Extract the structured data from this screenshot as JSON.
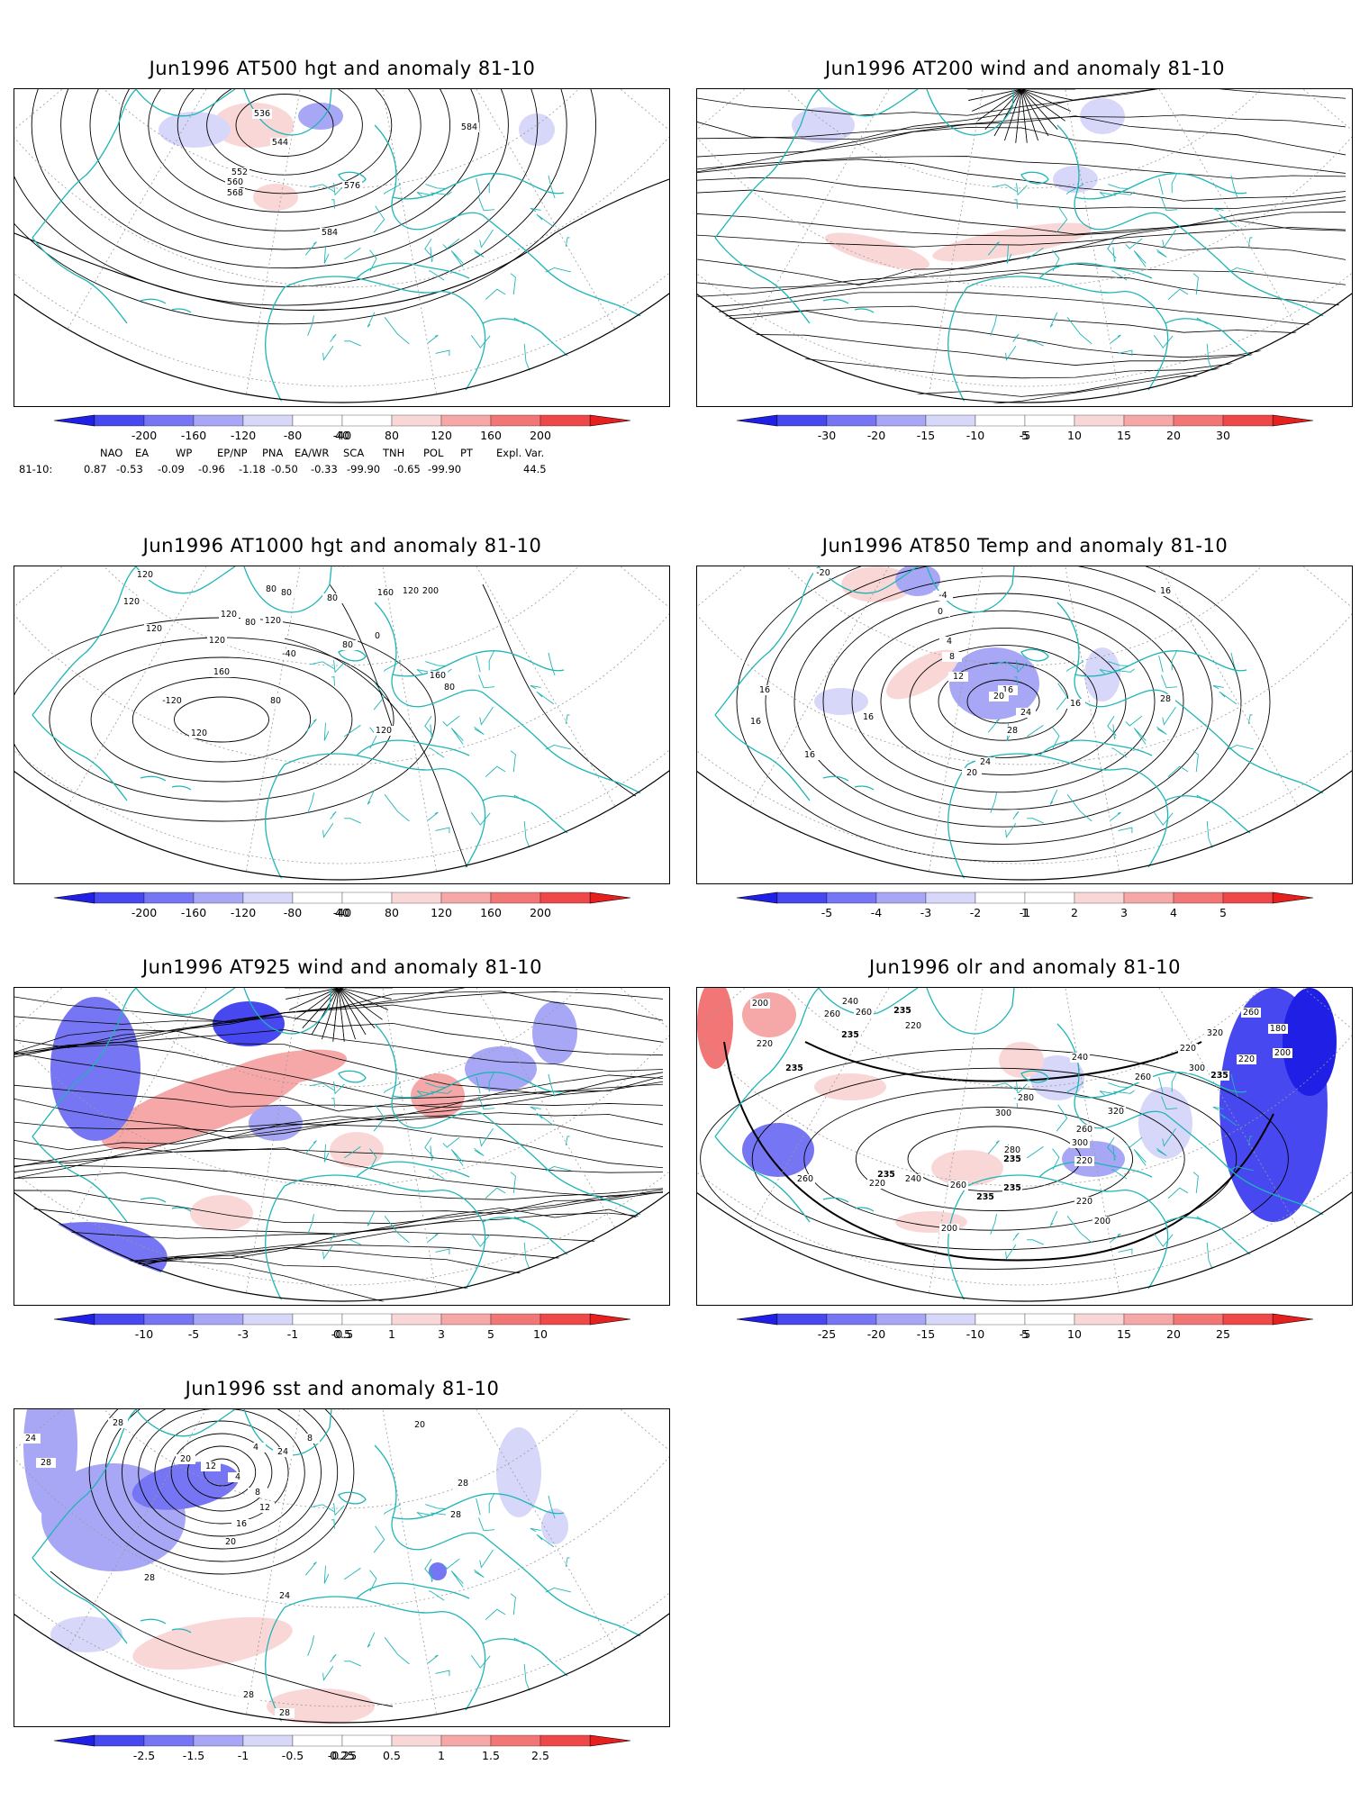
{
  "palette": {
    "neg": [
      "#1f1fe6",
      "#4848f0",
      "#7676f4",
      "#a7a7f6",
      "#d7d7fa"
    ],
    "pos": [
      "#fad7d7",
      "#f6a7a7",
      "#f27676",
      "#ee4848",
      "#e61f1f"
    ],
    "coast": "#1fb5b5",
    "contour": "#000000",
    "grid": "#9a9a9a"
  },
  "panels": [
    {
      "id": "z500",
      "title": "Jun1996 AT500 hgt and anomaly 81-10",
      "ticks": [
        "-200",
        "-160",
        "-120",
        "-80",
        "-40",
        "40",
        "80",
        "120",
        "160",
        "200"
      ],
      "contour_labels": [
        "536",
        "544",
        "552",
        "560",
        "568",
        "576",
        "584",
        "584"
      ]
    },
    {
      "id": "u200",
      "title": "Jun1996 AT200 wind and anomaly 81-10",
      "ticks": [
        "-30",
        "-20",
        "-15",
        "-10",
        "-5",
        "5",
        "10",
        "15",
        "20",
        "30"
      ],
      "contour_labels": []
    },
    {
      "id": "z1000",
      "title": "Jun1996 AT1000 hgt and anomaly 81-10",
      "ticks": [
        "-200",
        "-160",
        "-120",
        "-80",
        "-40",
        "40",
        "80",
        "120",
        "160",
        "200"
      ],
      "contour_labels": [
        "120",
        "120",
        "80",
        "120",
        "80",
        "80",
        "120",
        "80",
        "80",
        "0",
        "160",
        "120",
        "200",
        "120",
        "160",
        "120",
        "-40",
        "-120",
        "80",
        "80",
        "160",
        "120",
        "120"
      ]
    },
    {
      "id": "t850",
      "title": "Jun1996 AT850 Temp and anomaly 81-10",
      "ticks": [
        "-5",
        "-4",
        "-3",
        "-2",
        "-1",
        "1",
        "2",
        "3",
        "4",
        "5"
      ],
      "contour_labels": [
        "-20",
        "-4",
        "0",
        "4",
        "8",
        "12",
        "16",
        "20",
        "24",
        "28",
        "16",
        "16",
        "16",
        "16",
        "24",
        "20",
        "16",
        "28",
        "16"
      ]
    },
    {
      "id": "u925",
      "title": "Jun1996 AT925 wind and anomaly 81-10",
      "ticks": [
        "-10",
        "-5",
        "-3",
        "-1",
        "-0.5",
        "0.5",
        "1",
        "3",
        "5",
        "10"
      ],
      "contour_labels": []
    },
    {
      "id": "olr",
      "title": "Jun1996 olr and anomaly 81-10",
      "ticks": [
        "-25",
        "-20",
        "-15",
        "-10",
        "-5",
        "5",
        "10",
        "15",
        "20",
        "25"
      ],
      "contour_labels": [
        "200",
        "260",
        "220",
        "235",
        "260",
        "240",
        "235",
        "220",
        "235",
        "260",
        "180",
        "200",
        "220",
        "235",
        "300",
        "320",
        "220",
        "260",
        "240",
        "280",
        "300",
        "320",
        "260",
        "300",
        "280",
        "235",
        "220",
        "235",
        "240",
        "260",
        "235",
        "220",
        "200",
        "200",
        "220",
        "260",
        "235"
      ]
    },
    {
      "id": "sst",
      "title": "Jun1996 sst and anomaly 81-10",
      "ticks": [
        "-2.5",
        "-1.5",
        "-1",
        "-0.5",
        "-0.25",
        "0.25",
        "0.5",
        "1",
        "1.5",
        "2.5"
      ],
      "contour_labels": [
        "24",
        "28",
        "28",
        "20",
        "12",
        "4",
        "8",
        "12",
        "16",
        "20",
        "4",
        "24",
        "8",
        "20",
        "28",
        "28",
        "24",
        "28",
        "28",
        "28"
      ]
    }
  ],
  "teleconnections": {
    "row_label": "81-10:",
    "headers": [
      "NAO",
      "EA",
      "WP",
      "EP/NP",
      "PNA",
      "EA/WR",
      "SCA",
      "TNH",
      "POL",
      "PT",
      "Expl. Var."
    ],
    "values": [
      "0.87",
      "-0.53",
      "-0.09",
      "-0.96",
      "-1.18",
      "-0.50",
      "-0.33",
      "-99.90",
      "-0.65",
      "-99.90",
      "44.5"
    ]
  }
}
